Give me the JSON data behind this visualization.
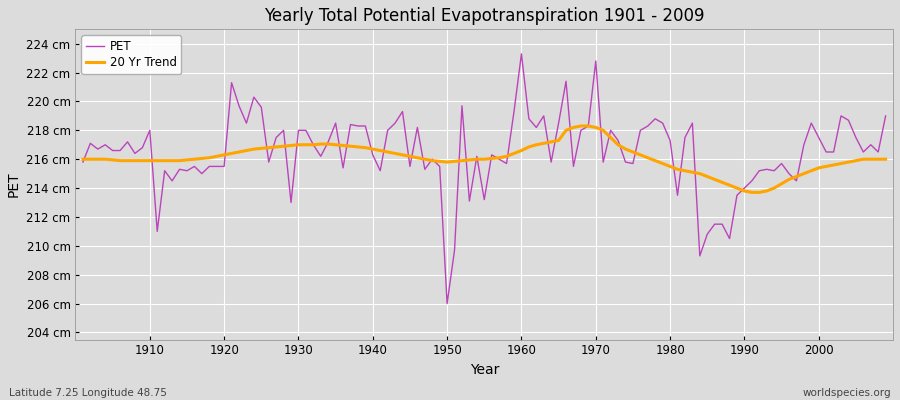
{
  "title": "Yearly Total Potential Evapotranspiration 1901 - 2009",
  "xlabel": "Year",
  "ylabel": "PET",
  "subtitle_left": "Latitude 7.25 Longitude 48.75",
  "subtitle_right": "worldspecies.org",
  "pet_color": "#bb44bb",
  "trend_color": "#FFA500",
  "background_color": "#dcdcdc",
  "fig_facecolor": "#dcdcdc",
  "ylim": [
    203.5,
    225.0
  ],
  "yticks": [
    204,
    206,
    208,
    210,
    212,
    214,
    216,
    218,
    220,
    222,
    224
  ],
  "xlim_min": 1900,
  "xlim_max": 2010,
  "xticks": [
    1910,
    1920,
    1930,
    1940,
    1950,
    1960,
    1970,
    1980,
    1990,
    2000
  ],
  "years": [
    1901,
    1902,
    1903,
    1904,
    1905,
    1906,
    1907,
    1908,
    1909,
    1910,
    1911,
    1912,
    1913,
    1914,
    1915,
    1916,
    1917,
    1918,
    1919,
    1920,
    1921,
    1922,
    1923,
    1924,
    1925,
    1926,
    1927,
    1928,
    1929,
    1930,
    1931,
    1932,
    1933,
    1934,
    1935,
    1936,
    1937,
    1938,
    1939,
    1940,
    1941,
    1942,
    1943,
    1944,
    1945,
    1946,
    1947,
    1948,
    1949,
    1950,
    1951,
    1952,
    1953,
    1954,
    1955,
    1956,
    1957,
    1958,
    1959,
    1960,
    1961,
    1962,
    1963,
    1964,
    1965,
    1966,
    1967,
    1968,
    1969,
    1970,
    1971,
    1972,
    1973,
    1974,
    1975,
    1976,
    1977,
    1978,
    1979,
    1980,
    1981,
    1982,
    1983,
    1984,
    1985,
    1986,
    1987,
    1988,
    1989,
    1990,
    1991,
    1992,
    1993,
    1994,
    1995,
    1996,
    1997,
    1998,
    1999,
    2000,
    2001,
    2002,
    2003,
    2004,
    2005,
    2006,
    2007,
    2008,
    2009
  ],
  "pet_values": [
    215.8,
    217.1,
    216.7,
    217.0,
    216.6,
    216.6,
    217.2,
    216.4,
    216.8,
    218.0,
    211.0,
    215.2,
    214.5,
    215.3,
    215.2,
    215.5,
    215.0,
    215.5,
    215.5,
    215.5,
    221.3,
    219.7,
    218.5,
    220.3,
    219.6,
    215.8,
    217.5,
    218.0,
    213.0,
    218.0,
    218.0,
    217.0,
    216.2,
    217.2,
    218.5,
    215.4,
    218.4,
    218.3,
    218.3,
    216.3,
    215.2,
    218.0,
    218.5,
    219.3,
    215.5,
    218.2,
    215.3,
    216.0,
    215.5,
    206.0,
    209.7,
    219.7,
    213.1,
    216.2,
    213.2,
    216.3,
    216.0,
    215.7,
    219.3,
    223.3,
    218.8,
    218.2,
    219.0,
    215.8,
    218.5,
    221.4,
    215.5,
    218.0,
    218.3,
    222.8,
    215.8,
    218.0,
    217.3,
    215.8,
    215.7,
    218.0,
    218.3,
    218.8,
    218.5,
    217.3,
    213.5,
    217.5,
    218.5,
    209.3,
    210.8,
    211.5,
    211.5,
    210.5,
    213.5,
    214.0,
    214.5,
    215.2,
    215.3,
    215.2,
    215.7,
    215.0,
    214.5,
    217.0,
    218.5,
    217.5,
    216.5,
    216.5,
    219.0,
    218.7,
    217.5,
    216.5,
    217.0,
    216.5,
    219.0
  ],
  "trend_values": [
    216.0,
    216.0,
    216.0,
    216.0,
    215.95,
    215.9,
    215.9,
    215.9,
    215.9,
    215.9,
    215.9,
    215.9,
    215.9,
    215.9,
    215.95,
    216.0,
    216.05,
    216.1,
    216.2,
    216.3,
    216.4,
    216.5,
    216.6,
    216.7,
    216.75,
    216.8,
    216.85,
    216.9,
    216.95,
    217.0,
    217.0,
    217.0,
    217.05,
    217.05,
    217.0,
    216.95,
    216.9,
    216.85,
    216.8,
    216.7,
    216.6,
    216.5,
    216.4,
    216.3,
    216.2,
    216.1,
    216.0,
    215.9,
    215.85,
    215.8,
    215.85,
    215.9,
    215.95,
    216.0,
    216.0,
    216.05,
    216.1,
    216.2,
    216.4,
    216.6,
    216.85,
    217.0,
    217.1,
    217.2,
    217.3,
    218.0,
    218.2,
    218.3,
    218.3,
    218.2,
    218.0,
    217.5,
    217.0,
    216.7,
    216.5,
    216.3,
    216.1,
    215.9,
    215.7,
    215.5,
    215.3,
    215.2,
    215.1,
    215.0,
    214.8,
    214.6,
    214.4,
    214.2,
    214.0,
    213.8,
    213.7,
    213.7,
    213.8,
    214.0,
    214.3,
    214.6,
    214.8,
    215.0,
    215.2,
    215.4,
    215.5,
    215.6,
    215.7,
    215.8,
    215.9,
    216.0,
    216.0,
    216.0,
    216.0
  ]
}
